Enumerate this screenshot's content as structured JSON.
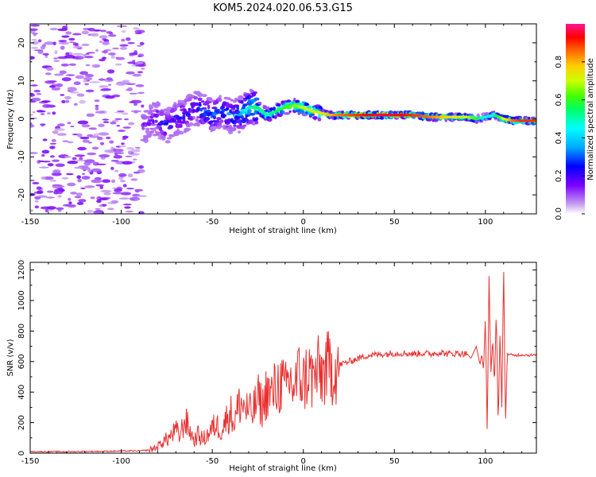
{
  "title": "KOM5.2024.020.06.53.G15",
  "chart_data": [
    {
      "type": "heatmap",
      "xlabel": "Height of straight line (km)",
      "ylabel": "Frequency (Hz)",
      "xlim": [
        -150,
        128
      ],
      "ylim": [
        -25,
        25
      ],
      "x_ticks": [
        -150,
        -100,
        -50,
        0,
        50,
        100
      ],
      "y_ticks": [
        -20,
        -10,
        0,
        10,
        20
      ],
      "ridge": [
        {
          "x": -85,
          "y": -1,
          "amp": 0.15
        },
        {
          "x": -80,
          "y": 0,
          "amp": 0.2
        },
        {
          "x": -75,
          "y": -2,
          "amp": 0.25
        },
        {
          "x": -70,
          "y": 0,
          "amp": 0.22
        },
        {
          "x": -65,
          "y": 1,
          "amp": 0.25
        },
        {
          "x": -60,
          "y": 3,
          "amp": 0.2
        },
        {
          "x": -55,
          "y": 2,
          "amp": 0.3
        },
        {
          "x": -50,
          "y": 1,
          "amp": 0.3
        },
        {
          "x": -45,
          "y": 2,
          "amp": 0.28
        },
        {
          "x": -40,
          "y": 1,
          "amp": 0.3
        },
        {
          "x": -35,
          "y": 1,
          "amp": 0.35
        },
        {
          "x": -30,
          "y": 3,
          "amp": 0.5
        },
        {
          "x": -25,
          "y": 3,
          "amp": 0.55
        },
        {
          "x": -20,
          "y": 1,
          "amp": 0.5
        },
        {
          "x": -15,
          "y": 2,
          "amp": 0.55
        },
        {
          "x": -10,
          "y": 3,
          "amp": 0.6
        },
        {
          "x": -5,
          "y": 3.5,
          "amp": 0.65
        },
        {
          "x": 0,
          "y": 3,
          "amp": 0.7
        },
        {
          "x": 5,
          "y": 2,
          "amp": 0.7
        },
        {
          "x": 10,
          "y": 1.5,
          "amp": 0.75
        },
        {
          "x": 15,
          "y": 1,
          "amp": 0.8
        },
        {
          "x": 20,
          "y": 1,
          "amp": 0.85
        },
        {
          "x": 30,
          "y": 1,
          "amp": 0.9
        },
        {
          "x": 40,
          "y": 1,
          "amp": 0.95
        },
        {
          "x": 50,
          "y": 1,
          "amp": 0.95
        },
        {
          "x": 60,
          "y": 1,
          "amp": 0.9
        },
        {
          "x": 70,
          "y": 0.5,
          "amp": 0.85
        },
        {
          "x": 80,
          "y": 0.5,
          "amp": 0.75
        },
        {
          "x": 90,
          "y": 0.5,
          "amp": 0.7
        },
        {
          "x": 95,
          "y": 0,
          "amp": 0.6
        },
        {
          "x": 100,
          "y": 0.5,
          "amp": 0.45
        },
        {
          "x": 105,
          "y": 1,
          "amp": 0.5
        },
        {
          "x": 110,
          "y": 0,
          "amp": 0.7
        },
        {
          "x": 115,
          "y": -0.5,
          "amp": 0.85
        },
        {
          "x": 120,
          "y": -0.5,
          "amp": 0.9
        },
        {
          "x": 128,
          "y": -0.5,
          "amp": 0.9
        }
      ],
      "colorbar": {
        "label": "Normalized spectral amplitude",
        "range": [
          0,
          1
        ],
        "ticks": [
          0.0,
          0.2,
          0.4,
          0.6,
          0.8
        ]
      }
    },
    {
      "type": "line",
      "xlabel": "Height of straight line (km)",
      "ylabel": "SNR (v/v)",
      "xlim": [
        -150,
        128
      ],
      "ylim": [
        0,
        1250
      ],
      "x_ticks": [
        -150,
        -100,
        -50,
        0,
        50,
        100
      ],
      "y_ticks": [
        0,
        200,
        400,
        600,
        800,
        1000,
        1200
      ],
      "series": [
        {
          "color": "#e83030",
          "x": [
            -150,
            -140,
            -130,
            -120,
            -110,
            -100,
            -90,
            -85,
            -80,
            -78,
            -75,
            -72,
            -70,
            -68,
            -65,
            -62,
            -60,
            -58,
            -55,
            -52,
            -50,
            -48,
            -45,
            -42,
            -40,
            -38,
            -35,
            -32,
            -30,
            -28,
            -25,
            -22,
            -20,
            -18,
            -15,
            -12,
            -10,
            -8,
            -5,
            -2,
            0,
            3,
            5,
            8,
            10,
            12,
            15,
            18,
            20,
            25,
            30,
            35,
            40,
            45,
            50,
            55,
            60,
            65,
            70,
            75,
            80,
            85,
            90,
            92,
            95,
            97,
            98,
            99,
            100,
            101,
            102,
            103,
            104,
            105,
            106,
            107,
            108,
            109,
            110,
            111,
            112,
            115,
            120,
            128
          ],
          "y": [
            10,
            10,
            9,
            11,
            12,
            14,
            15,
            20,
            40,
            70,
            90,
            120,
            150,
            110,
            220,
            140,
            80,
            120,
            90,
            130,
            160,
            190,
            150,
            230,
            270,
            200,
            330,
            300,
            270,
            260,
            360,
            300,
            420,
            370,
            430,
            460,
            400,
            480,
            430,
            520,
            460,
            540,
            480,
            530,
            520,
            540,
            560,
            570,
            580,
            600,
            620,
            640,
            645,
            650,
            655,
            655,
            650,
            655,
            650,
            660,
            650,
            655,
            650,
            620,
            700,
            580,
            650,
            540,
            900,
            120,
            1160,
            520,
            750,
            440,
            950,
            170,
            800,
            300,
            1240,
            180,
            650,
            640,
            645,
            640
          ]
        }
      ]
    }
  ]
}
